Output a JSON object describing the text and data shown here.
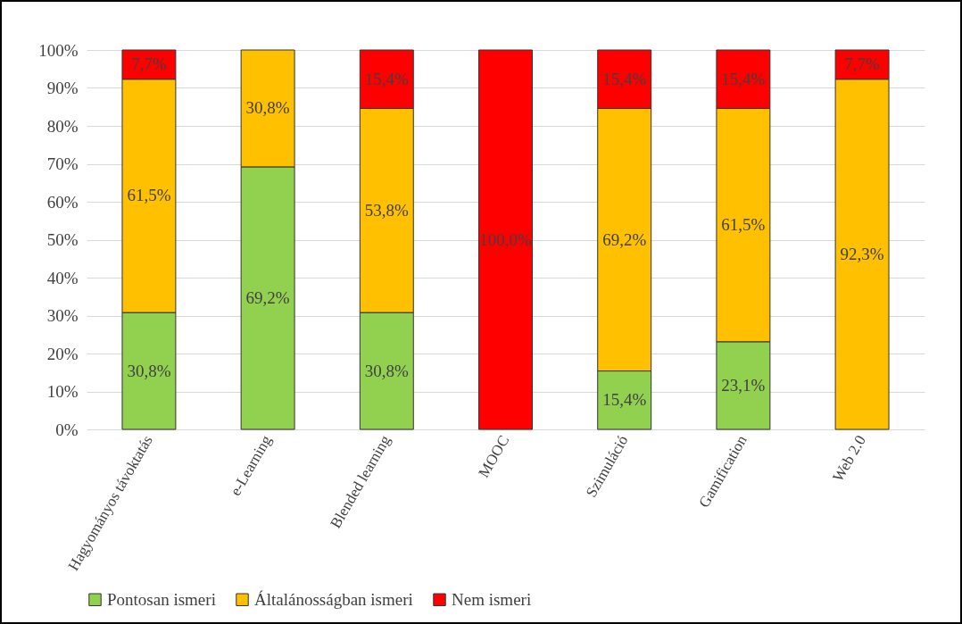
{
  "chart_data": {
    "type": "bar",
    "stacked": true,
    "categories": [
      "Hagyományos távoktatás",
      "e-Learning",
      "Blended learning",
      "MOOC",
      "Szimuláció",
      "Gamification",
      "Web 2.0"
    ],
    "series": [
      {
        "name": "Pontosan ismeri",
        "color": "#92d050",
        "values": [
          30.8,
          69.2,
          30.8,
          null,
          15.4,
          23.1,
          null
        ],
        "value_labels": [
          "30,8%",
          "69,2%",
          "30,8%",
          null,
          "15,4%",
          "23,1%",
          null
        ]
      },
      {
        "name": "Általánosságban ismeri",
        "color": "#ffc000",
        "values": [
          61.5,
          30.8,
          53.8,
          null,
          69.2,
          61.5,
          92.3
        ],
        "value_labels": [
          "61,5%",
          "30,8%",
          "53,8%",
          null,
          "69,2%",
          "61,5%",
          "92,3%"
        ]
      },
      {
        "name": "Nem ismeri",
        "color": "#ff0000",
        "values": [
          7.7,
          null,
          15.4,
          100.0,
          15.4,
          15.4,
          7.7
        ],
        "value_labels": [
          "7,7%",
          null,
          "15,4%",
          "100,0%",
          "15,4%",
          "15,4%",
          "7,7%"
        ]
      }
    ],
    "ylim": [
      0,
      100
    ],
    "yticks": [
      {
        "value": 0,
        "label": "0%"
      },
      {
        "value": 10,
        "label": "10%"
      },
      {
        "value": 20,
        "label": "20%"
      },
      {
        "value": 30,
        "label": "30%"
      },
      {
        "value": 40,
        "label": "40%"
      },
      {
        "value": 50,
        "label": "50%"
      },
      {
        "value": 60,
        "label": "60%"
      },
      {
        "value": 70,
        "label": "70%"
      },
      {
        "value": 80,
        "label": "80%"
      },
      {
        "value": 90,
        "label": "90%"
      },
      {
        "value": 100,
        "label": "100%"
      }
    ],
    "grid": "y",
    "legend": "bottom"
  }
}
